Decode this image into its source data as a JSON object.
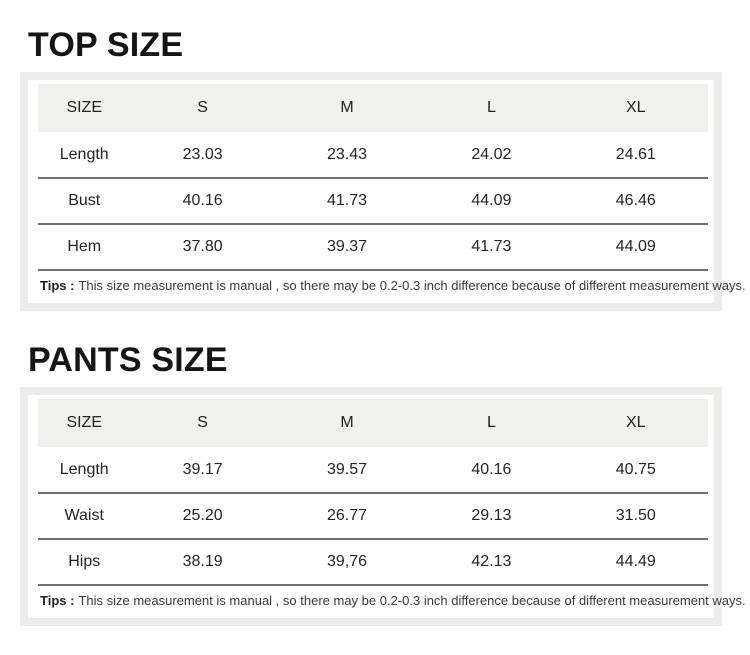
{
  "colors": {
    "page-bg": "#ffffff",
    "panel-border": "#ececea",
    "header-bg": "#f0f0ef",
    "divider": "#717171",
    "title-color": "#151515",
    "text-color": "#242424",
    "tips-color": "#3a3a3a"
  },
  "sections": [
    {
      "title": "TOP SIZE",
      "table": {
        "columns": [
          "SIZE",
          "S",
          "M",
          "L",
          "XL"
        ],
        "rows": [
          {
            "label": "Length",
            "values": [
              "23.03",
              "23.43",
              "24.02",
              "24.61"
            ]
          },
          {
            "label": "Bust",
            "values": [
              "40.16",
              "41.73",
              "44.09",
              "46.46"
            ]
          },
          {
            "label": "Hem",
            "values": [
              "37.80",
              "39.37",
              "41.73",
              "44.09"
            ]
          }
        ]
      },
      "tips_label": "Tips :",
      "tips_text": "This size measurement is manual , so there may be 0.2-0.3 inch difference because of different measurement ways."
    },
    {
      "title": "PANTS SIZE",
      "table": {
        "columns": [
          "SIZE",
          "S",
          "M",
          "L",
          "XL"
        ],
        "rows": [
          {
            "label": "Length",
            "values": [
              "39.17",
              "39.57",
              "40.16",
              "40.75"
            ]
          },
          {
            "label": "Waist",
            "values": [
              "25.20",
              "26.77",
              "29.13",
              "31.50"
            ]
          },
          {
            "label": "Hips",
            "values": [
              "38.19",
              "39,76",
              "42.13",
              "44.49"
            ]
          }
        ]
      },
      "tips_label": "Tips :",
      "tips_text": "This size measurement is manual , so there may be 0.2-0.3 inch difference because of different measurement ways."
    }
  ]
}
